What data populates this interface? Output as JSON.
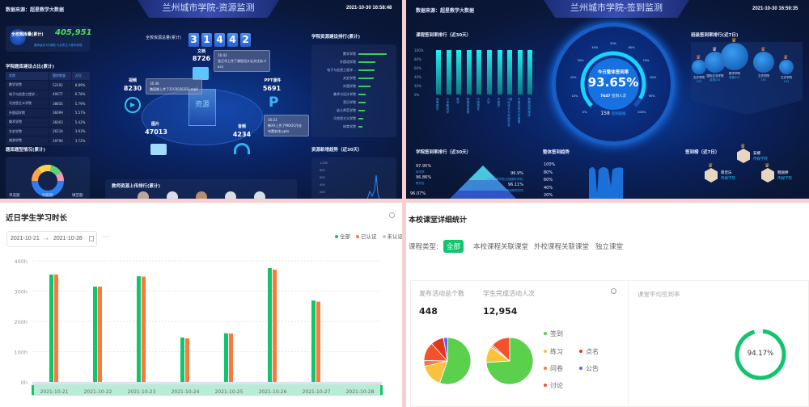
{
  "resource_monitor": {
    "source": "数据来源：超星教学大数据",
    "title": "兰州城市学院-资源监测",
    "time": "2021-10-30 16:58:48",
    "question_bank": {
      "label": "全校题库量(累计)",
      "value": "405,951",
      "sub": "题库量前3的课程  马克思主义基本原理"
    },
    "college_table": {
      "title": "学院题库建设占比(累计)",
      "headers": [
        "学院",
        "题库数量",
        "占比"
      ],
      "rows": [
        [
          "数学学院",
          "52192",
          "8.89%"
        ],
        [
          "电子与信息工程学...",
          "40677",
          "6.78%"
        ],
        [
          "马克思主义学院",
          "38856",
          "5.79%"
        ],
        [
          "外国语学院",
          "36099",
          "5.57%"
        ],
        [
          "美术学院",
          "36003",
          "5.42%"
        ],
        [
          "文史学院",
          "26234",
          "3.93%"
        ],
        [
          "旅游学院",
          "29796",
          "3.72%"
        ]
      ]
    },
    "question_types": {
      "title": "题库题型情况(累计)",
      "labels": [
        "单选题",
        "判断题",
        "填空题"
      ]
    },
    "total": {
      "label": "全校资源总量(累计)",
      "digits": [
        "3",
        "1",
        "4",
        "4",
        "2"
      ]
    },
    "center_label": "资源",
    "items": [
      {
        "label": "文档",
        "value": "8726"
      },
      {
        "label": "视频",
        "value": "8230"
      },
      {
        "label": "图片",
        "value": "47013"
      },
      {
        "label": "PPT课件",
        "value": "5691"
      },
      {
        "label": "音频",
        "value": "4234"
      }
    ],
    "tips": [
      {
        "time": "16:36",
        "text": "魏丽娜上传了2103036301.mp4"
      },
      {
        "time": "16:43",
        "text": "张正华上传了课程设计论文任务.docx"
      },
      {
        "time": "16:23",
        "text": "韩XX上传了MOOC作业布置安排.pptx"
      }
    ],
    "ranking": {
      "title": "学院资源建设排行(累计)",
      "items": [
        {
          "name": "数学学院",
          "value": 100
        },
        {
          "name": "外国语学院",
          "value": 60
        },
        {
          "name": "电子与信息工程学...",
          "value": 58
        },
        {
          "name": "文史学院",
          "value": 54
        },
        {
          "name": "外国学院",
          "value": 44
        },
        {
          "name": "美术与设计学院",
          "value": 27
        },
        {
          "name": "音乐学院",
          "value": 25
        },
        {
          "name": "幼儿师范学院",
          "value": 24
        },
        {
          "name": "马克思主义学院",
          "value": 17
        },
        {
          "name": "体育学院",
          "value": 13
        }
      ]
    },
    "trend": {
      "title": "资源新增趋势（近30天）",
      "ticks": [
        "1,000",
        "800",
        "600",
        "400",
        "200"
      ]
    },
    "teacher_rank": {
      "title": "教师资源上传排行(累计)"
    }
  },
  "signin_monitor": {
    "source": "数据来源：超星教学大数据",
    "title": "兰州城市学院-签到监测",
    "time": "2021-10-30 16:59:35",
    "course_rank": {
      "title": "课程签到率排行（近30天）",
      "ticks": [
        "100%",
        "80%",
        "60%",
        "40%",
        "20%",
        "0%"
      ],
      "values": [
        100,
        100,
        100,
        100,
        100,
        100,
        100,
        100,
        100,
        100
      ],
      "names": [
        "高等数学",
        "小学教育学",
        "数学",
        "数据库原理",
        "中国语言",
        "大学",
        "中国学",
        "C程序设计与系统开发",
        "中国近现代史纲要",
        "数据结构程序"
      ]
    },
    "gauge": {
      "label": "今日整体签到率",
      "value": "93.65%",
      "fraction": 0.9365,
      "count": "7647",
      "count_label": "签到人次",
      "classes": "158",
      "classes_label": "签到班级",
      "ticks": [
        "0%",
        "10%",
        "20%",
        "30%",
        "40%",
        "50%",
        "60%",
        "70%",
        "80%",
        "90%",
        "100%"
      ]
    },
    "class_rank": {
      "title": "班级签到率排行(近7日)",
      "items": [
        {
          "college": "文史学院",
          "cls": "193"
        },
        {
          "college": "国际交流学院",
          "cls": "英语201"
        },
        {
          "college": "数学学院",
          "cls": "财管201"
        },
        {
          "college": "文史学院",
          "cls": "192"
        },
        {
          "college": "文史学院",
          "cls": "194"
        }
      ]
    },
    "college_rank": {
      "title": "学院签到率排行（近30天）",
      "items": [
        {
          "rate": "97.95%",
          "name": "商学院"
        },
        {
          "rate": "96.9%",
          "name": "国际教育学院(丝路国际学院)"
        },
        {
          "rate": "96.86%",
          "name": "教务处"
        },
        {
          "rate": "96.11%",
          "name": "继续教育学院"
        },
        {
          "rate": "96.07%",
          "name": ""
        }
      ]
    },
    "overall_trend": {
      "title": "整体签到趋势",
      "ticks": [
        "100%",
        "80%",
        "60%",
        "40%",
        "20%"
      ]
    },
    "leaderboard": {
      "title": "签到榜（近7日）",
      "items": [
        {
          "name": "安娜",
          "college": "传媒学院"
        },
        {
          "name": "蔡佳乐",
          "college": "传媒学院"
        },
        {
          "name": "魏丽婷",
          "college": "传媒学院"
        }
      ]
    }
  },
  "study_time": {
    "title": "近日学生学习时长",
    "date_start": "2021-10-21",
    "date_end": "2021-10-28",
    "more": "···",
    "chart_data": {
      "type": "bar",
      "title": "近日学生学习时长",
      "ylabel": "",
      "xlabel": "",
      "ylim": [
        0,
        400
      ],
      "yticks": [
        "0h",
        "100h",
        "200h",
        "300h",
        "400h"
      ],
      "categories": [
        "2021-10-21",
        "2021-10-22",
        "2021-10-23",
        "2021-10-24",
        "2021-10-25",
        "2021-10-26",
        "2021-10-27",
        "2021-10-28"
      ],
      "series": [
        {
          "name": "全部",
          "color": "#12c46e",
          "values": [
            355,
            315,
            349,
            147,
            161,
            376,
            269,
            0
          ]
        },
        {
          "name": "已认证",
          "color": "#fa7a3c",
          "values": [
            355,
            315,
            348,
            144,
            160,
            371,
            265,
            0
          ]
        },
        {
          "name": "未认证",
          "color": "#c8c8d0",
          "values": [
            0,
            0,
            0,
            0,
            0,
            0,
            0,
            0
          ]
        }
      ],
      "legend": "top-right",
      "grid": true
    }
  },
  "class_stats": {
    "title": "本校课堂详细统计",
    "type_label": "课程类型:",
    "tabs": [
      {
        "label": "全部",
        "active": true
      },
      {
        "label": "本校课程关联课堂"
      },
      {
        "label": "外校课程关联课堂"
      },
      {
        "label": "独立课堂"
      }
    ],
    "activities": {
      "label": "发布活动总个数",
      "value": "448"
    },
    "completions": {
      "label": "学生完成活动人次",
      "value": "12,954"
    },
    "legend": [
      {
        "name": "签到",
        "color": "#5ad04c"
      },
      {
        "name": "练习",
        "color": "#f9c23c"
      },
      {
        "name": "点名",
        "color": "#e0381a"
      },
      {
        "name": "问卷",
        "color": "#f47a45"
      },
      {
        "name": "公告",
        "color": "#6b5cff"
      },
      {
        "name": "讨论",
        "color": "#f4522c"
      }
    ],
    "chart_data": [
      {
        "type": "pie",
        "title": "发布活动总个数",
        "labels": [
          "签到",
          "练习",
          "问卷",
          "讨论",
          "点名",
          "公告"
        ],
        "values": [
          55,
          16,
          4,
          13,
          9,
          3
        ]
      },
      {
        "type": "pie",
        "title": "学生完成活动人次",
        "labels": [
          "签到",
          "练习",
          "问卷",
          "点名",
          "讨论"
        ],
        "values": [
          74,
          11,
          1,
          1,
          13
        ]
      }
    ],
    "avg_rate": {
      "label": "课堂平均签到率",
      "value": "94.17%",
      "fraction": 0.9417
    }
  }
}
